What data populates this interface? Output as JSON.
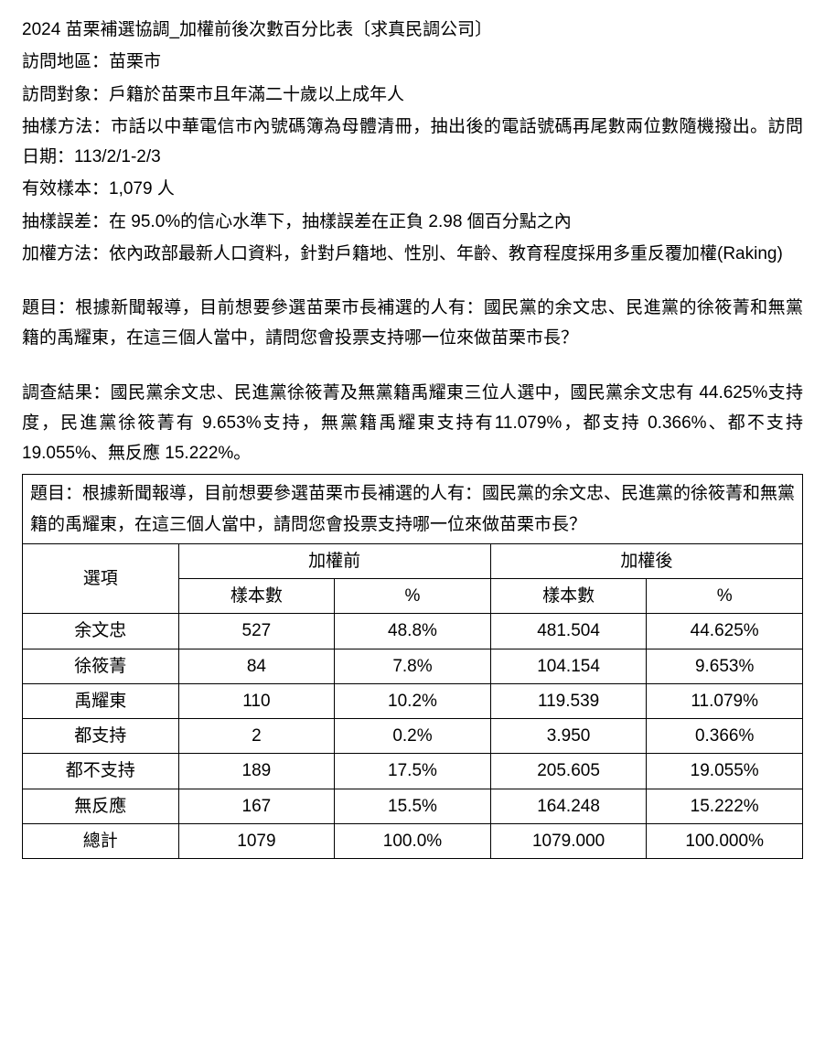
{
  "meta": {
    "title": "2024 苗栗補選協調_加權前後次數百分比表〔求真民調公司〕",
    "area_label": "訪問地區：苗栗市",
    "subject_label": "訪問對象：戶籍於苗栗市且年滿二十歲以上成年人",
    "sampling_label": "抽樣方法：市話以中華電信市內號碼簿為母體清冊，抽出後的電話號碼再尾數兩位數隨機撥出。訪問日期：113/2/1-2/3",
    "sample_label": "有效樣本：1,079 人",
    "error_label": "抽樣誤差：在 95.0%的信心水準下，抽樣誤差在正負 2.98 個百分點之內",
    "weight_label": "加權方法：依內政部最新人口資料，針對戶籍地、性別、年齡、教育程度採用多重反覆加權(Raking)"
  },
  "question_para": "題目：根據新聞報導，目前想要參選苗栗市長補選的人有：國民黨的余文忠、民進黨的徐筱菁和無黨籍的禹耀東，在這三個人當中，請問您會投票支持哪一位來做苗栗市長？",
  "result_para": "調查結果：國民黨余文忠、民進黨徐筱菁及無黨籍禹耀東三位人選中，國民黨余文忠有 44.625%支持度，民進黨徐筱菁有  9.653%支持，無黨籍禹耀東支持有11.079%，都支持 0.366%、都不支持 19.055%、無反應 15.222%。",
  "table": {
    "question": "題目：根據新聞報導，目前想要參選苗栗市長補選的人有：國民黨的余文忠、民進黨的徐筱菁和無黨籍的禹耀東，在這三個人當中，請問您會投票支持哪一位來做苗栗市長？",
    "col_option": "選項",
    "col_before": "加權前",
    "col_after": "加權後",
    "col_sample": "樣本數",
    "col_pct": "%",
    "rows": [
      {
        "opt": "余文忠",
        "b_n": "527",
        "b_p": "48.8%",
        "a_n": "481.504",
        "a_p": "44.625%"
      },
      {
        "opt": "徐筱菁",
        "b_n": "84",
        "b_p": "7.8%",
        "a_n": "104.154",
        "a_p": "9.653%"
      },
      {
        "opt": "禹耀東",
        "b_n": "110",
        "b_p": "10.2%",
        "a_n": "119.539",
        "a_p": "11.079%"
      },
      {
        "opt": "都支持",
        "b_n": "2",
        "b_p": "0.2%",
        "a_n": "3.950",
        "a_p": "0.366%"
      },
      {
        "opt": "都不支持",
        "b_n": "189",
        "b_p": "17.5%",
        "a_n": "205.605",
        "a_p": "19.055%"
      },
      {
        "opt": "無反應",
        "b_n": "167",
        "b_p": "15.5%",
        "a_n": "164.248",
        "a_p": "15.222%"
      },
      {
        "opt": "總計",
        "b_n": "1079",
        "b_p": "100.0%",
        "a_n": "1079.000",
        "a_p": "100.000%"
      }
    ]
  },
  "style": {
    "text_color": "#000000",
    "bg_color": "#ffffff",
    "border_color": "#000000",
    "font_size_pt": 14
  }
}
